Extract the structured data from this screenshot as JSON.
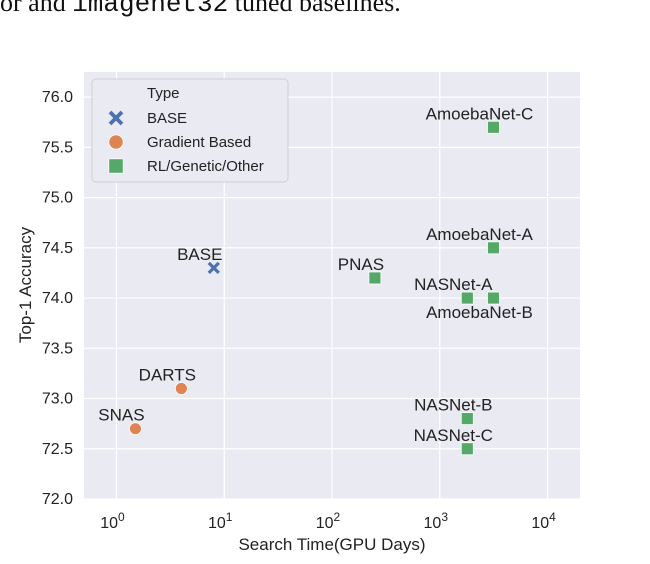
{
  "caption_fragment": {
    "prefix": "or and ",
    "code": "imagenet32",
    "suffix": " tuned baselines."
  },
  "chart_data": {
    "type": "scatter",
    "title": "",
    "xlabel": "Search Time(GPU Days)",
    "ylabel": "Top-1 Accuracy",
    "x_scale": "log",
    "xlim": [
      0.5,
      20000
    ],
    "ylim": [
      72.0,
      76.25
    ],
    "x_ticks": [
      {
        "value": 1,
        "base": "10",
        "exp": "0"
      },
      {
        "value": 10,
        "base": "10",
        "exp": "1"
      },
      {
        "value": 100,
        "base": "10",
        "exp": "2"
      },
      {
        "value": 1000,
        "base": "10",
        "exp": "3"
      },
      {
        "value": 10000,
        "base": "10",
        "exp": "4"
      }
    ],
    "y_ticks": [
      "72.0",
      "72.5",
      "73.0",
      "73.5",
      "74.0",
      "74.5",
      "75.0",
      "75.5",
      "76.0"
    ],
    "grid": true,
    "background": "#eaeaf2",
    "legend": {
      "title": "Type",
      "placement": "top-left",
      "entries": [
        {
          "label": "BASE",
          "marker": "x",
          "color": "#4c72b0"
        },
        {
          "label": "Gradient Based",
          "marker": "circle",
          "color": "#dd8452"
        },
        {
          "label": "RL/Genetic/Other",
          "marker": "square",
          "color": "#55a868"
        }
      ]
    },
    "points": [
      {
        "label": "BASE",
        "type": "BASE",
        "x": 8,
        "y": 74.3,
        "label_pos": "above"
      },
      {
        "label": "DARTS",
        "type": "Gradient Based",
        "x": 4,
        "y": 73.1,
        "label_pos": "above"
      },
      {
        "label": "SNAS",
        "type": "Gradient Based",
        "x": 1.5,
        "y": 72.7,
        "label_pos": "above"
      },
      {
        "label": "PNAS",
        "type": "RL/Genetic/Other",
        "x": 250,
        "y": 74.2,
        "label_pos": "above"
      },
      {
        "label": "AmoebaNet-C",
        "type": "RL/Genetic/Other",
        "x": 3150,
        "y": 75.7,
        "label_pos": "above"
      },
      {
        "label": "AmoebaNet-A",
        "type": "RL/Genetic/Other",
        "x": 3150,
        "y": 74.5,
        "label_pos": "above"
      },
      {
        "label": "NASNet-A",
        "type": "RL/Genetic/Other",
        "x": 1800,
        "y": 74.0,
        "label_pos": "above"
      },
      {
        "label": "AmoebaNet-B",
        "type": "RL/Genetic/Other",
        "x": 3150,
        "y": 74.0,
        "label_pos": "below"
      },
      {
        "label": "NASNet-B",
        "type": "RL/Genetic/Other",
        "x": 1800,
        "y": 72.8,
        "label_pos": "above"
      },
      {
        "label": "NASNet-C",
        "type": "RL/Genetic/Other",
        "x": 1800,
        "y": 72.5,
        "label_pos": "above"
      }
    ]
  }
}
